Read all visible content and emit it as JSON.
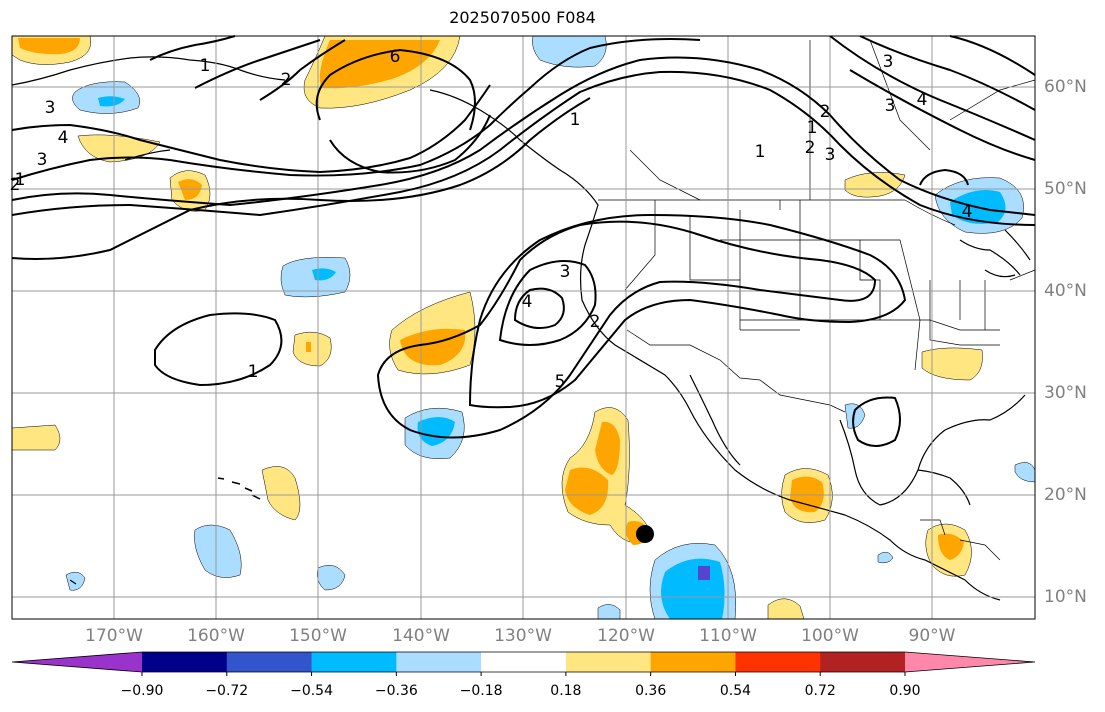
{
  "title": "2025070500 F084",
  "map": {
    "projection": "plate-carree",
    "extent": {
      "lon_min": -180,
      "lon_max": -80,
      "lat_min": 8,
      "lat_max": 65
    },
    "lon_labels": [
      "170°W",
      "160°W",
      "150°W",
      "140°W",
      "130°W",
      "120°W",
      "110°W",
      "100°W",
      "90°W"
    ],
    "lat_labels": [
      "60°N",
      "50°N",
      "40°N",
      "30°N",
      "20°N",
      "10°N"
    ],
    "grid": true,
    "marker": {
      "description": "black dot",
      "lon": -117.3,
      "lat": 16.2
    }
  },
  "contours": {
    "color": "#000000",
    "labels": [
      "1",
      "2",
      "3",
      "4",
      "5",
      "6",
      "1",
      "2",
      "3",
      "4",
      "3",
      "2",
      "1",
      "1",
      "1",
      "2",
      "3",
      "4",
      "3",
      "4",
      "2",
      "3",
      "1"
    ]
  },
  "colorbar": {
    "ticks": [
      "−0.90",
      "−0.72",
      "−0.54",
      "−0.36",
      "−0.18",
      "0.18",
      "0.36",
      "0.54",
      "0.72",
      "0.90"
    ],
    "colors": [
      "#9933cc",
      "#000088",
      "#3355cc",
      "#00bbff",
      "#aaddff",
      "#ffffff",
      "#ffe680",
      "#ffa500",
      "#ff3300",
      "#b22222",
      "#ff88aa"
    ]
  },
  "fill_colors": {
    "light_blue": "#aaddff",
    "blue": "#00bbff",
    "purple": "#5544cc",
    "yellow": "#ffe680",
    "orange": "#ffa500",
    "red_orange": "#ff3300"
  }
}
